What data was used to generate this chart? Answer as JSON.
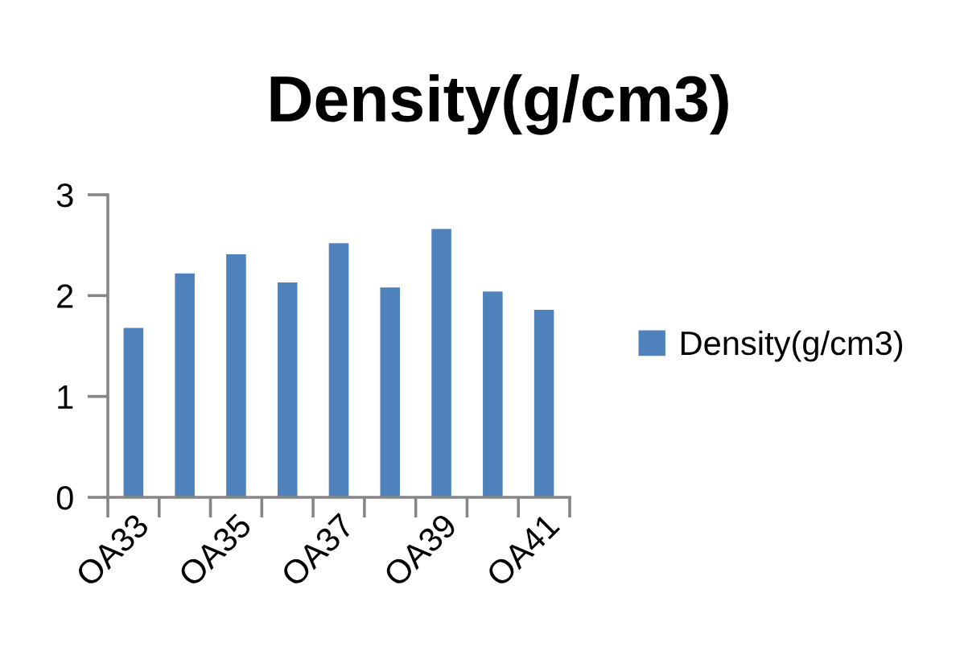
{
  "chart_data": {
    "type": "bar",
    "title": "Density(g/cm3)",
    "categories": [
      "OA33",
      null,
      "OA35",
      null,
      "OA37",
      null,
      "OA39",
      null,
      "OA41"
    ],
    "series": [
      {
        "name": "Density(g/cm3)",
        "color": "#4f81bd",
        "values": [
          1.68,
          2.22,
          2.41,
          2.13,
          2.52,
          2.08,
          2.66,
          2.04,
          1.86
        ]
      }
    ],
    "ylim": [
      0,
      3
    ],
    "yticks": [
      0,
      1,
      2,
      3
    ],
    "grid": false,
    "legend": "right"
  }
}
